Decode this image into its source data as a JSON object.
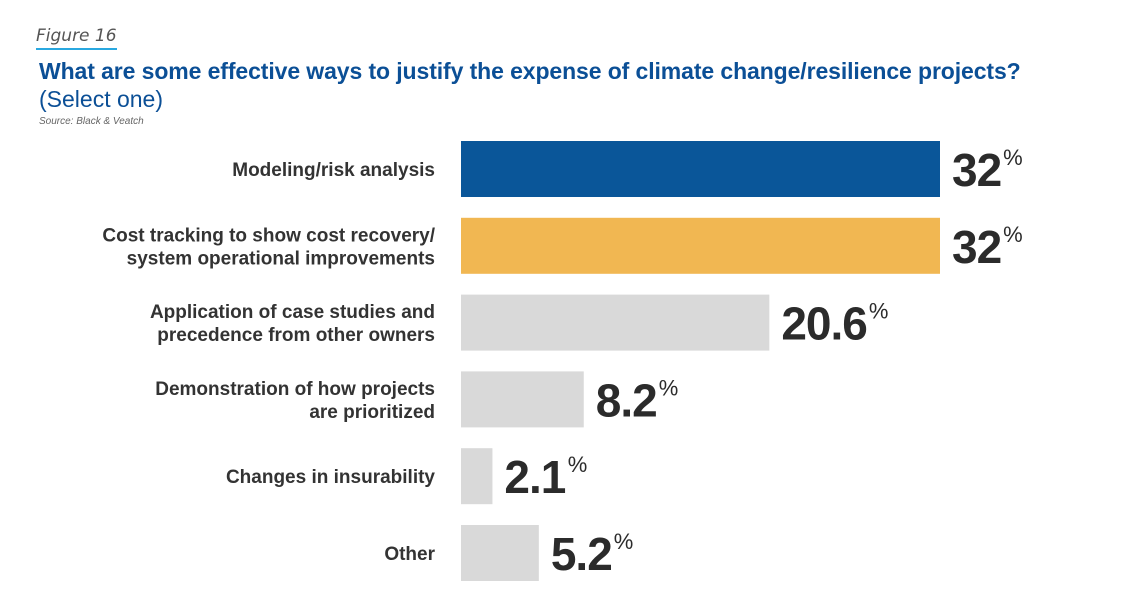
{
  "figure_label": "Figure 16",
  "chart_data": {
    "type": "bar",
    "orientation": "horizontal",
    "title": "What are some effective ways to justify the expense of climate change/resilience projects?",
    "subtitle": "(Select one)",
    "source": "Source: Black & Veatch",
    "categories": [
      [
        "Modeling/risk analysis"
      ],
      [
        "Cost tracking to show cost recovery/",
        "system operational improvements"
      ],
      [
        "Application of case studies and",
        "precedence from other owners"
      ],
      [
        "Demonstration of how projects",
        "are prioritized"
      ],
      [
        "Changes in insurability"
      ],
      [
        "Other"
      ]
    ],
    "values": [
      32,
      32,
      20.6,
      8.2,
      2.1,
      5.2
    ],
    "value_labels": [
      "32",
      "32",
      "20.6",
      "8.2",
      "2.1",
      "5.2"
    ],
    "unit": "%",
    "colors": [
      "#0a5699",
      "#f1b752",
      "#d9d9d9",
      "#d9d9d9",
      "#d9d9d9",
      "#d9d9d9"
    ],
    "grid": false,
    "legend": "none"
  }
}
